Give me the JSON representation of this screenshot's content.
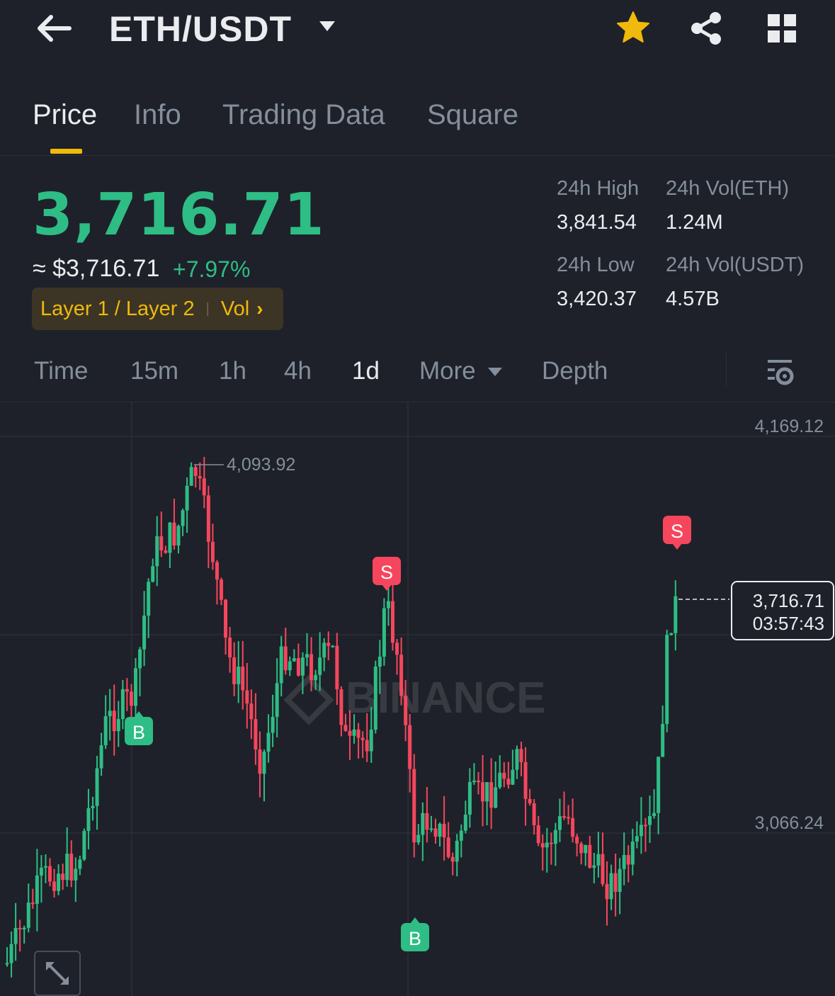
{
  "header": {
    "pair": "ETH/USDT",
    "icons": [
      "back-arrow-icon",
      "chevron-down-icon",
      "star-icon",
      "share-icon",
      "grid-icon"
    ],
    "star_color": "#f0b90b"
  },
  "tabs": [
    {
      "label": "Price",
      "active": true
    },
    {
      "label": "Info",
      "active": false
    },
    {
      "label": "Trading Data",
      "active": false
    },
    {
      "label": "Square",
      "active": false
    }
  ],
  "ticker": {
    "last_price": "3,716.71",
    "usd_equiv": "≈ $3,716.71",
    "change": "+7.97%",
    "tag": {
      "category": "Layer 1 / Layer 2",
      "vol": "Vol"
    },
    "stats": {
      "high_label": "24h High",
      "high_value": "3,841.54",
      "vol_eth_label": "24h Vol(ETH)",
      "vol_eth_value": "1.24M",
      "low_label": "24h Low",
      "low_value": "3,420.37",
      "vol_usdt_label": "24h Vol(USDT)",
      "vol_usdt_value": "4.57B"
    },
    "up_color": "#2ebd85",
    "down_color": "#f6465d"
  },
  "intervals": {
    "items": [
      "Time",
      "15m",
      "1h",
      "4h",
      "1d",
      "More",
      "Depth"
    ],
    "active": "1d"
  },
  "chart": {
    "axis_labels": {
      "top": "4,169.12",
      "bottom": "3,066.24"
    },
    "max_label": "4,093.92",
    "current_price": "3,716.71",
    "countdown": "03:57:43",
    "watermark": "BINANCE",
    "markers": {
      "buy": "B",
      "sell": "S"
    }
  },
  "chart_data": {
    "type": "candlestick",
    "y_ticks": [
      4169.12,
      3066.24
    ],
    "annotated_high": 4093.92,
    "last_close": 3716.71
  }
}
